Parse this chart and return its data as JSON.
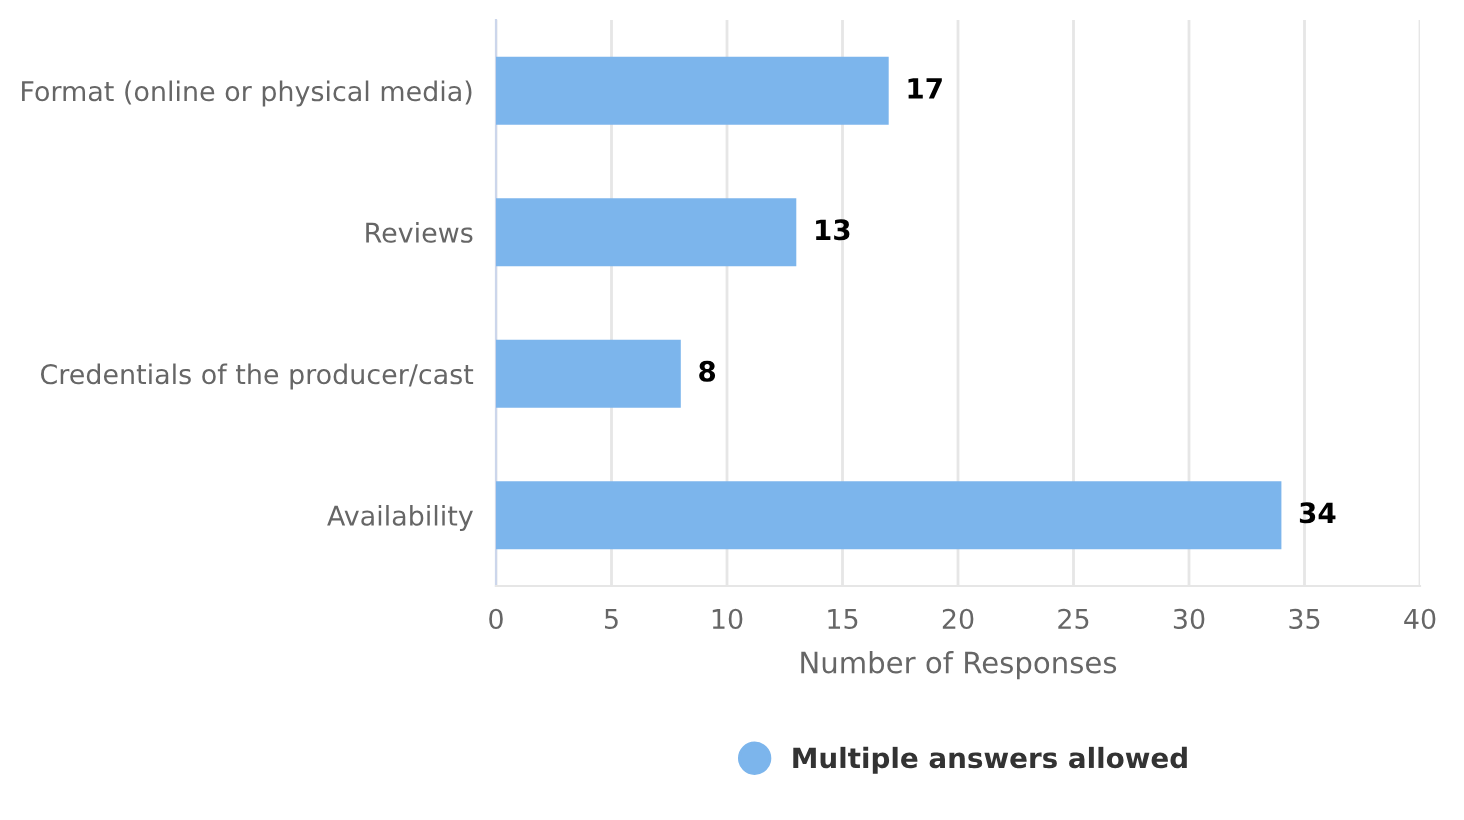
{
  "chart_data": {
    "type": "bar",
    "orientation": "horizontal",
    "categories": [
      "Format (online or physical media)",
      "Reviews",
      "Credentials of the producer/cast",
      "Availability"
    ],
    "series": [
      {
        "name": "Multiple answers allowed",
        "color": "#7cb5ec",
        "values": [
          17,
          13,
          8,
          34
        ]
      }
    ],
    "xlabel": "Number of Responses",
    "xlim": [
      0,
      40
    ],
    "xticks": [
      0,
      5,
      10,
      15,
      20,
      25,
      30,
      35,
      40
    ],
    "grid": "x",
    "legend": "bottom",
    "data_labels": true
  }
}
